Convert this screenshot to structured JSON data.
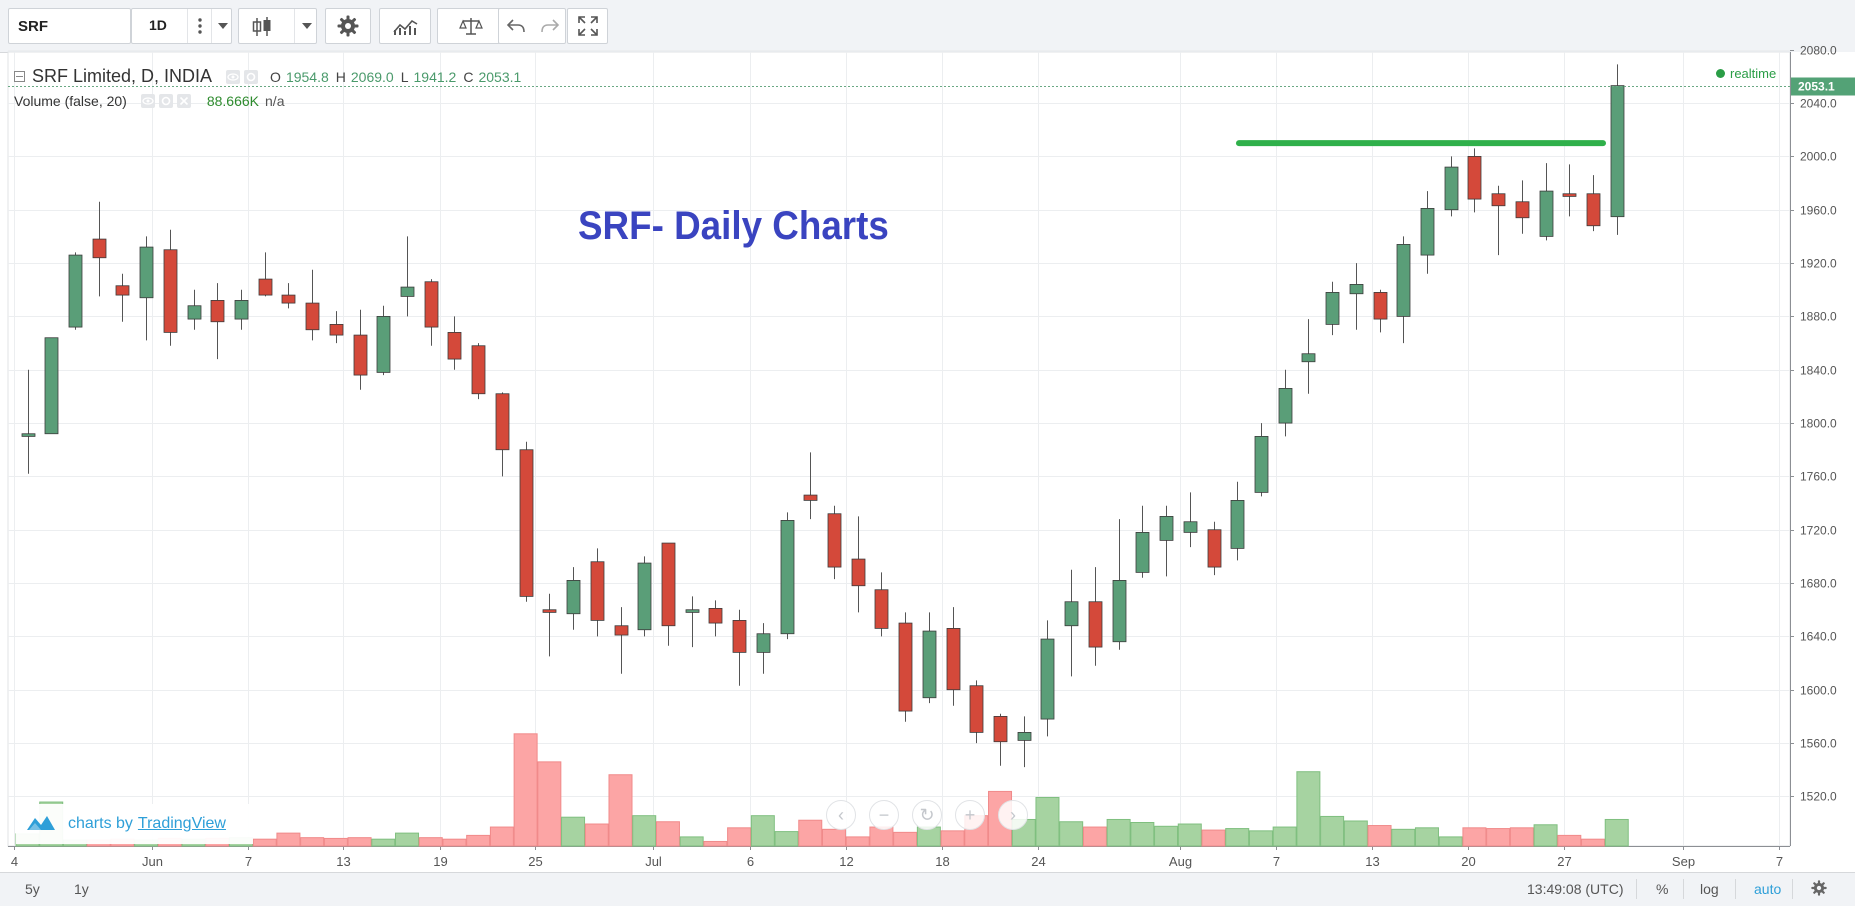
{
  "toolbar": {
    "symbol": "SRF",
    "interval": "1D",
    "icons": [
      "more-vert-icon",
      "chevron-down-icon",
      "candles-icon",
      "gear-icon",
      "indicators-icon",
      "compare-scales-icon",
      "undo-icon",
      "redo-icon",
      "fullscreen-icon"
    ]
  },
  "legend": {
    "series_title": "SRF Limited, D, INDIA",
    "o_label": "O",
    "o_value": "1954.8",
    "h_label": "H",
    "h_value": "2069.0",
    "l_label": "L",
    "l_value": "1941.2",
    "c_label": "C",
    "c_value": "2053.1",
    "volume_title": "Volume (false, 20)",
    "volume_value": "88.666K",
    "volume_ma": "n/a"
  },
  "realtime_label": "realtime",
  "annotation_text": "SRF- Daily Charts",
  "watermark": {
    "prefix": "charts by",
    "link": "TradingView"
  },
  "bottom_bar": {
    "range_5y": "5y",
    "range_1y": "1y",
    "time": "13:49:08 (UTC)",
    "percent": "%",
    "log": "log",
    "auto": "auto"
  },
  "colors": {
    "up": "#5a9e78",
    "down": "#d4493a",
    "vol_up": "#a6d3a1",
    "vol_down": "#fca5a5",
    "last_price": "#53a276",
    "resistance": "#2fb04a",
    "annotation": "#3a44c0"
  },
  "chart_data": {
    "type": "candlestick",
    "title": "SRF Limited, D, INDIA",
    "y_ticks": [
      1520,
      1560,
      1600,
      1640,
      1680,
      1720,
      1760,
      1800,
      1840,
      1880,
      1920,
      1960,
      2000,
      2040,
      2080
    ],
    "y_range": [
      1500,
      2090
    ],
    "x_ticks": [
      "4",
      "Jun",
      "7",
      "13",
      "19",
      "25",
      "Jul",
      "6",
      "12",
      "18",
      "24",
      "Aug",
      "7",
      "13",
      "20",
      "27",
      "Sep",
      "7"
    ],
    "last_price": "2053.1",
    "resistance_level": 2010,
    "candles": [
      {
        "o": 1790,
        "h": 1840,
        "l": 1762,
        "c": 1792,
        "v": 16
      },
      {
        "o": 1792,
        "h": 1864,
        "l": 1792,
        "c": 1864,
        "v": 58
      },
      {
        "o": 1872,
        "h": 1928,
        "l": 1870,
        "c": 1926,
        "v": 8
      },
      {
        "o": 1938,
        "h": 1966,
        "l": 1895,
        "c": 1924,
        "v": 8
      },
      {
        "o": 1903,
        "h": 1912,
        "l": 1876,
        "c": 1896,
        "v": 9
      },
      {
        "o": 1894,
        "h": 1940,
        "l": 1862,
        "c": 1932,
        "v": 8
      },
      {
        "o": 1930,
        "h": 1945,
        "l": 1858,
        "c": 1868,
        "v": 10
      },
      {
        "o": 1878,
        "h": 1900,
        "l": 1870,
        "c": 1888,
        "v": 9
      },
      {
        "o": 1892,
        "h": 1905,
        "l": 1848,
        "c": 1876,
        "v": 10
      },
      {
        "o": 1878,
        "h": 1900,
        "l": 1870,
        "c": 1892,
        "v": 11
      },
      {
        "o": 1908,
        "h": 1928,
        "l": 1895,
        "c": 1896,
        "v": 9
      },
      {
        "o": 1896,
        "h": 1905,
        "l": 1886,
        "c": 1890,
        "v": 17
      },
      {
        "o": 1890,
        "h": 1915,
        "l": 1862,
        "c": 1870,
        "v": 11
      },
      {
        "o": 1874,
        "h": 1884,
        "l": 1860,
        "c": 1866,
        "v": 10
      },
      {
        "o": 1866,
        "h": 1885,
        "l": 1825,
        "c": 1836,
        "v": 11
      },
      {
        "o": 1838,
        "h": 1888,
        "l": 1836,
        "c": 1880,
        "v": 9
      },
      {
        "o": 1895,
        "h": 1940,
        "l": 1880,
        "c": 1902,
        "v": 17
      },
      {
        "o": 1906,
        "h": 1908,
        "l": 1858,
        "c": 1872,
        "v": 11
      },
      {
        "o": 1868,
        "h": 1880,
        "l": 1840,
        "c": 1848,
        "v": 9
      },
      {
        "o": 1858,
        "h": 1860,
        "l": 1818,
        "c": 1822,
        "v": 14
      },
      {
        "o": 1822,
        "h": 1823,
        "l": 1760,
        "c": 1780,
        "v": 25
      },
      {
        "o": 1780,
        "h": 1786,
        "l": 1666,
        "c": 1670,
        "v": 148
      },
      {
        "o": 1660,
        "h": 1672,
        "l": 1625,
        "c": 1658,
        "v": 111
      },
      {
        "o": 1657,
        "h": 1692,
        "l": 1645,
        "c": 1682,
        "v": 38
      },
      {
        "o": 1696,
        "h": 1706,
        "l": 1640,
        "c": 1652,
        "v": 29
      },
      {
        "o": 1648,
        "h": 1662,
        "l": 1612,
        "c": 1641,
        "v": 94
      },
      {
        "o": 1645,
        "h": 1700,
        "l": 1640,
        "c": 1695,
        "v": 40
      },
      {
        "o": 1710,
        "h": 1710,
        "l": 1633,
        "c": 1648,
        "v": 32
      },
      {
        "o": 1658,
        "h": 1670,
        "l": 1632,
        "c": 1660,
        "v": 12
      },
      {
        "o": 1661,
        "h": 1667,
        "l": 1640,
        "c": 1650,
        "v": 6
      },
      {
        "o": 1652,
        "h": 1660,
        "l": 1603,
        "c": 1628,
        "v": 24
      },
      {
        "o": 1628,
        "h": 1650,
        "l": 1612,
        "c": 1642,
        "v": 40
      },
      {
        "o": 1642,
        "h": 1733,
        "l": 1638,
        "c": 1727,
        "v": 19
      },
      {
        "o": 1746,
        "h": 1778,
        "l": 1728,
        "c": 1742,
        "v": 34
      },
      {
        "o": 1732,
        "h": 1738,
        "l": 1683,
        "c": 1692,
        "v": 22
      },
      {
        "o": 1698,
        "h": 1730,
        "l": 1658,
        "c": 1678,
        "v": 12
      },
      {
        "o": 1675,
        "h": 1688,
        "l": 1640,
        "c": 1646,
        "v": 25
      },
      {
        "o": 1650,
        "h": 1658,
        "l": 1576,
        "c": 1584,
        "v": 18
      },
      {
        "o": 1594,
        "h": 1658,
        "l": 1590,
        "c": 1644,
        "v": 25
      },
      {
        "o": 1646,
        "h": 1662,
        "l": 1588,
        "c": 1600,
        "v": 20
      },
      {
        "o": 1603,
        "h": 1607,
        "l": 1560,
        "c": 1568,
        "v": 40
      },
      {
        "o": 1580,
        "h": 1582,
        "l": 1543,
        "c": 1561,
        "v": 72
      },
      {
        "o": 1562,
        "h": 1580,
        "l": 1542,
        "c": 1568,
        "v": 35
      },
      {
        "o": 1578,
        "h": 1652,
        "l": 1565,
        "c": 1638,
        "v": 64
      },
      {
        "o": 1648,
        "h": 1690,
        "l": 1610,
        "c": 1666,
        "v": 32
      },
      {
        "o": 1666,
        "h": 1692,
        "l": 1618,
        "c": 1632,
        "v": 25
      },
      {
        "o": 1636,
        "h": 1728,
        "l": 1630,
        "c": 1682,
        "v": 35
      },
      {
        "o": 1688,
        "h": 1738,
        "l": 1684,
        "c": 1718,
        "v": 31
      },
      {
        "o": 1712,
        "h": 1738,
        "l": 1685,
        "c": 1730,
        "v": 26
      },
      {
        "o": 1718,
        "h": 1748,
        "l": 1707,
        "c": 1726,
        "v": 29
      },
      {
        "o": 1720,
        "h": 1726,
        "l": 1686,
        "c": 1692,
        "v": 21
      },
      {
        "o": 1706,
        "h": 1756,
        "l": 1697,
        "c": 1742,
        "v": 23
      },
      {
        "o": 1748,
        "h": 1800,
        "l": 1745,
        "c": 1790,
        "v": 20
      },
      {
        "o": 1800,
        "h": 1840,
        "l": 1790,
        "c": 1826,
        "v": 25
      },
      {
        "o": 1846,
        "h": 1878,
        "l": 1822,
        "c": 1852,
        "v": 98
      },
      {
        "o": 1874,
        "h": 1906,
        "l": 1866,
        "c": 1898,
        "v": 39
      },
      {
        "o": 1897,
        "h": 1920,
        "l": 1870,
        "c": 1904,
        "v": 33
      },
      {
        "o": 1898,
        "h": 1900,
        "l": 1868,
        "c": 1878,
        "v": 27
      },
      {
        "o": 1880,
        "h": 1940,
        "l": 1860,
        "c": 1934,
        "v": 22
      },
      {
        "o": 1926,
        "h": 1974,
        "l": 1912,
        "c": 1961,
        "v": 24
      },
      {
        "o": 1960,
        "h": 2000,
        "l": 1955,
        "c": 1992,
        "v": 12
      },
      {
        "o": 2000,
        "h": 2006,
        "l": 1958,
        "c": 1968,
        "v": 24
      },
      {
        "o": 1972,
        "h": 1978,
        "l": 1926,
        "c": 1963,
        "v": 23
      },
      {
        "o": 1966,
        "h": 1982,
        "l": 1942,
        "c": 1954,
        "v": 24
      },
      {
        "o": 1940,
        "h": 1995,
        "l": 1937,
        "c": 1974,
        "v": 28
      },
      {
        "o": 1972,
        "h": 1994,
        "l": 1955,
        "c": 1970,
        "v": 14
      },
      {
        "o": 1972,
        "h": 1986,
        "l": 1944,
        "c": 1948,
        "v": 9
      },
      {
        "o": 1954.8,
        "h": 2069.0,
        "l": 1941.2,
        "c": 2053.1,
        "v": 35
      }
    ]
  }
}
